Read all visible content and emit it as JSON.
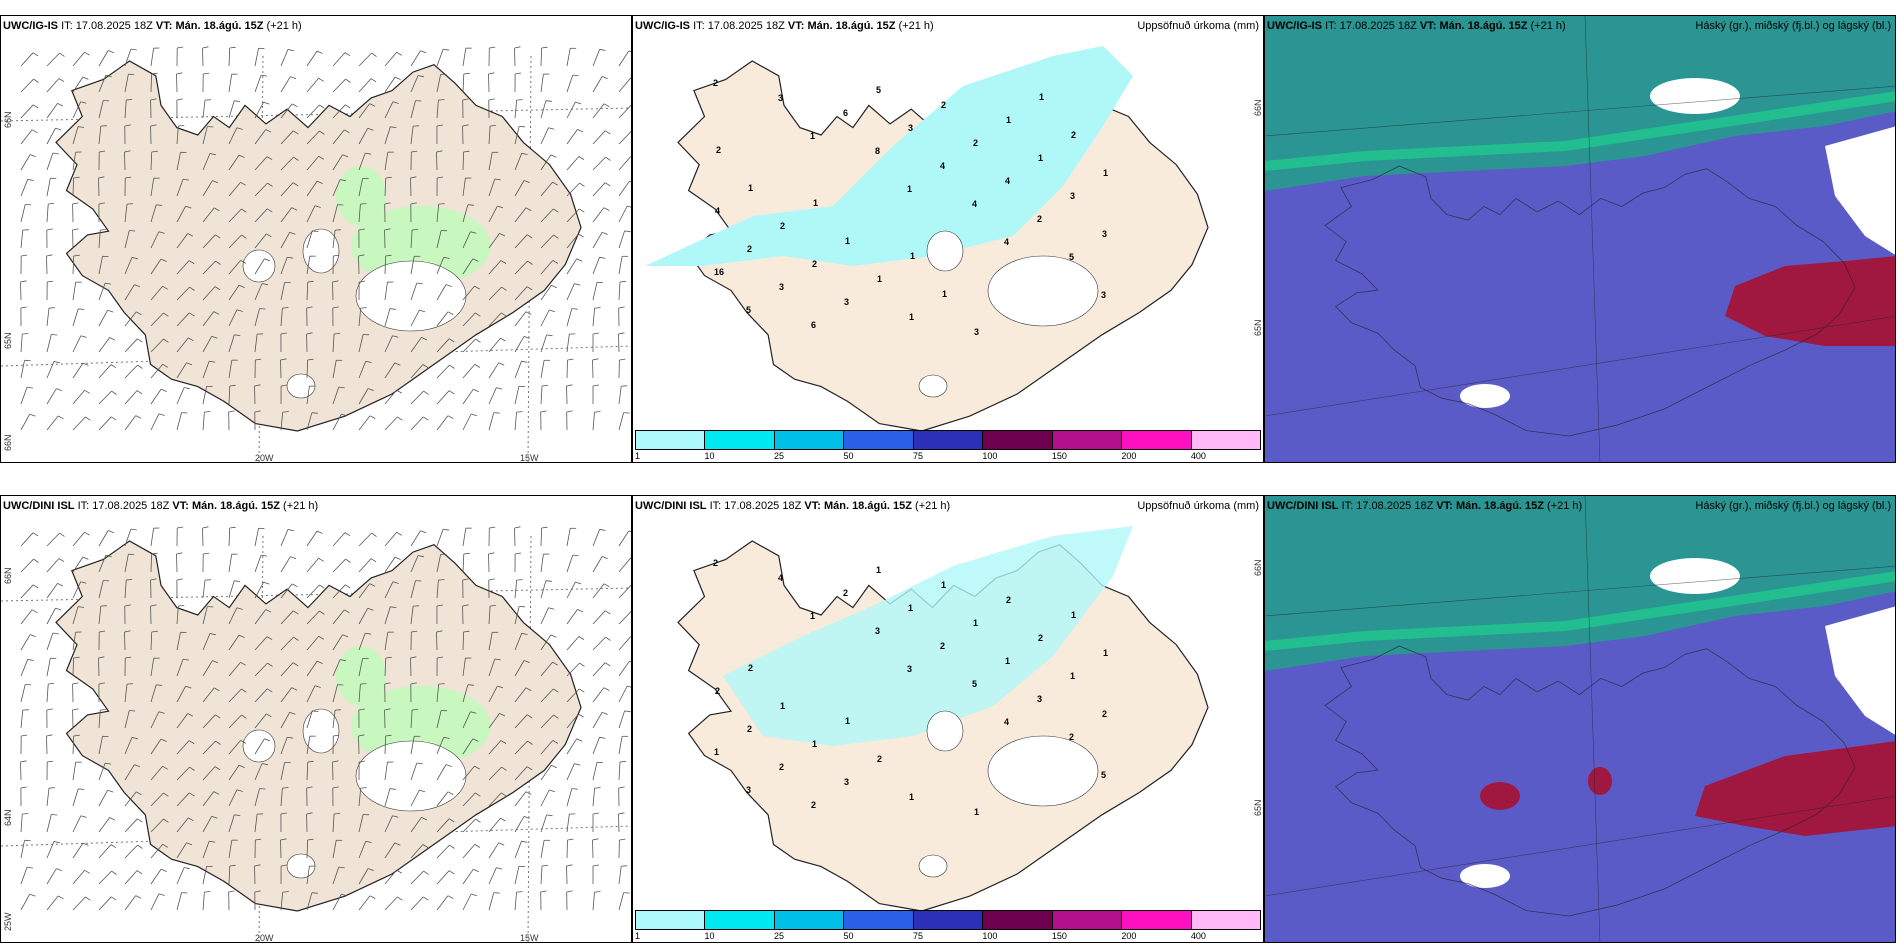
{
  "rows": [
    {
      "model": "UWC/IG-IS",
      "it_label": "IT:",
      "it_value": "17.08.2025 18Z",
      "vt_label": "VT:",
      "vt_value": "Mán. 18.ágú. 15Z",
      "lead": "(+21 h)",
      "precip_title": "Uppsöfnuð úrkoma (mm)",
      "cloud_title": "Háský (gr.), miðský (fj.bl.) og lágský (bl.)"
    },
    {
      "model": "UWC/DINI ISL",
      "it_label": "IT:",
      "it_value": "17.08.2025 18Z",
      "vt_label": "VT:",
      "vt_value": "Mán. 18.ágú. 15Z",
      "lead": "(+21 h)",
      "precip_title": "Uppsöfnuð úrkoma (mm)",
      "cloud_title": "Háský (gr.), miðský (fj.bl.) og lágský (bl.)"
    }
  ],
  "wind_map": {
    "lat_labels": [
      "66N",
      "65N",
      "64N"
    ],
    "lon_labels": [
      "25W",
      "20W",
      "15W"
    ]
  },
  "precip_map": {
    "lat_labels": [
      "66N",
      "65N"
    ]
  },
  "colorbar": {
    "ticks": [
      "1",
      "10",
      "25",
      "50",
      "75",
      "100",
      "150",
      "200",
      "400"
    ],
    "colors": [
      "#aefafa",
      "#00e8f0",
      "#00c0e8",
      "#2a60e8",
      "#2a30b8",
      "#6e0050",
      "#b0108a",
      "#ff10c0",
      "#ffb8f8"
    ]
  },
  "colors": {
    "land": "#efe4d6",
    "precip_land": "#f8ebdc",
    "precip_light": "#b0f8f8",
    "wet_green": "#c8f8c0",
    "cloud_low": "#5b5bc8",
    "cloud_mid": "#22a088",
    "cloud_high": "#a01840"
  },
  "precip_numbers_top": [
    "2",
    "1",
    "1",
    "4",
    "3",
    "3",
    "8",
    "4",
    "5",
    "5",
    "6",
    "4",
    "2",
    "16",
    "6",
    "3",
    "4",
    "3",
    "3",
    "5",
    "2",
    "3",
    "2",
    "3",
    "2",
    "1",
    "4",
    "2",
    "1",
    "1",
    "1",
    "2",
    "1",
    "3",
    "2",
    "1",
    "1",
    "1",
    "1",
    "2",
    "1",
    "1"
  ],
  "precip_numbers_bottom": [
    "2",
    "1",
    "3",
    "4",
    "5",
    "4",
    "3",
    "5",
    "2",
    "3",
    "2",
    "2",
    "3",
    "1",
    "2",
    "1",
    "1",
    "2",
    "2",
    "1",
    "1",
    "1",
    "2",
    "3",
    "1",
    "2",
    "2",
    "1",
    "1",
    "2",
    "1",
    "1",
    "2",
    "1",
    "1",
    "2",
    "1"
  ]
}
